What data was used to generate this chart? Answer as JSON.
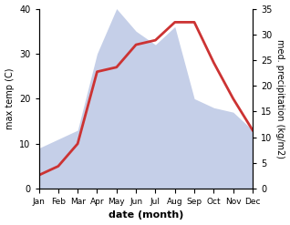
{
  "months": [
    "Jan",
    "Feb",
    "Mar",
    "Apr",
    "May",
    "Jun",
    "Jul",
    "Aug",
    "Sep",
    "Oct",
    "Nov",
    "Dec"
  ],
  "temperature": [
    3,
    5,
    10,
    26,
    27,
    32,
    33,
    37,
    37,
    28,
    20,
    13
  ],
  "precipitation": [
    9,
    11,
    13,
    30,
    40,
    35,
    32,
    36,
    20,
    18,
    17,
    13
  ],
  "temp_color": "#cc3333",
  "precip_fill_color": "#c5cfe8",
  "left_ylim": [
    0,
    40
  ],
  "right_ylim": [
    0,
    35
  ],
  "left_yticks": [
    0,
    10,
    20,
    30,
    40
  ],
  "right_yticks": [
    0,
    5,
    10,
    15,
    20,
    25,
    30,
    35
  ],
  "left_ylabel": "max temp (C)",
  "right_ylabel": "med. precipitation (kg/m2)",
  "xlabel": "date (month)",
  "background_color": "#ffffff"
}
